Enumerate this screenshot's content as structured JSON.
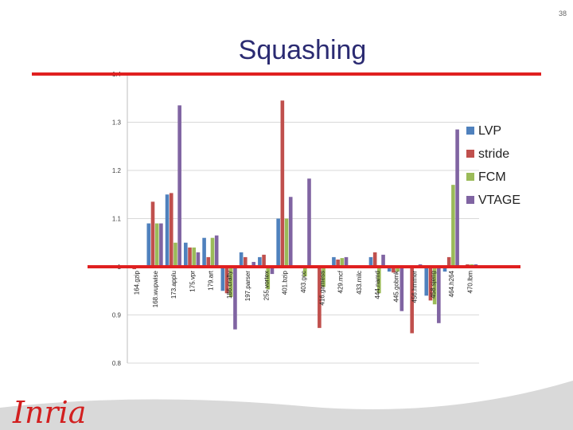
{
  "page_number": "38",
  "logo_text": "Inria",
  "colors": {
    "series": [
      "#4f81bd",
      "#c0504d",
      "#9bbb59",
      "#8064a2"
    ],
    "title": "#2b2b72",
    "reference_line": "#e02020",
    "footer": "#d9d9d9",
    "logo": "#d21f1f"
  },
  "chart_data": {
    "type": "bar",
    "title": "Squashing",
    "ylim": [
      0.8,
      1.4
    ],
    "yticks": [
      "0.8",
      "0.9",
      "1",
      "1.1",
      "1.2",
      "1.3",
      "1.4"
    ],
    "ytick_values": [
      0.8,
      0.9,
      1.0,
      1.1,
      1.2,
      1.3,
      1.4
    ],
    "reference_lines": [
      1.0,
      1.4
    ],
    "legend_position": "right",
    "categories": [
      "164.gzip",
      "168.wupwise",
      "173.applu",
      "175.vpr",
      "179.art",
      "186.crafty",
      "197.parser",
      "255.vortex",
      "401.bzip",
      "403.gcc",
      "416.gamess",
      "429.mcf",
      "433.milc",
      "444.namd",
      "445.gobmk",
      "456.hmmer",
      "458.sjeng",
      "464.h264",
      "470.lbm"
    ],
    "series": [
      {
        "name": "LVP",
        "values": [
          1.0,
          1.09,
          1.15,
          1.05,
          1.06,
          0.95,
          1.03,
          1.02,
          1.1,
          1.0,
          1.0,
          1.02,
          1.0,
          1.02,
          0.99,
          1.0,
          0.94,
          0.99,
          1.0
        ]
      },
      {
        "name": "stride",
        "values": [
          0.995,
          1.135,
          1.153,
          1.04,
          1.02,
          0.945,
          1.02,
          1.025,
          1.345,
          1.0,
          0.873,
          1.015,
          1.0,
          1.03,
          0.988,
          0.862,
          0.93,
          1.02,
          1.005
        ]
      },
      {
        "name": "FCM",
        "values": [
          1.0,
          1.09,
          1.05,
          1.04,
          1.06,
          0.937,
          1.0,
          0.953,
          1.1,
          0.98,
          0.958,
          1.018,
          1.0,
          0.945,
          0.99,
          0.997,
          0.922,
          1.17,
          1.005
        ]
      },
      {
        "name": "VTAGE",
        "values": [
          1.0,
          1.09,
          1.335,
          1.03,
          1.065,
          0.87,
          1.01,
          0.985,
          1.145,
          1.183,
          1.0,
          1.02,
          1.0,
          1.025,
          0.908,
          1.005,
          0.883,
          1.285,
          1.005
        ]
      }
    ]
  }
}
